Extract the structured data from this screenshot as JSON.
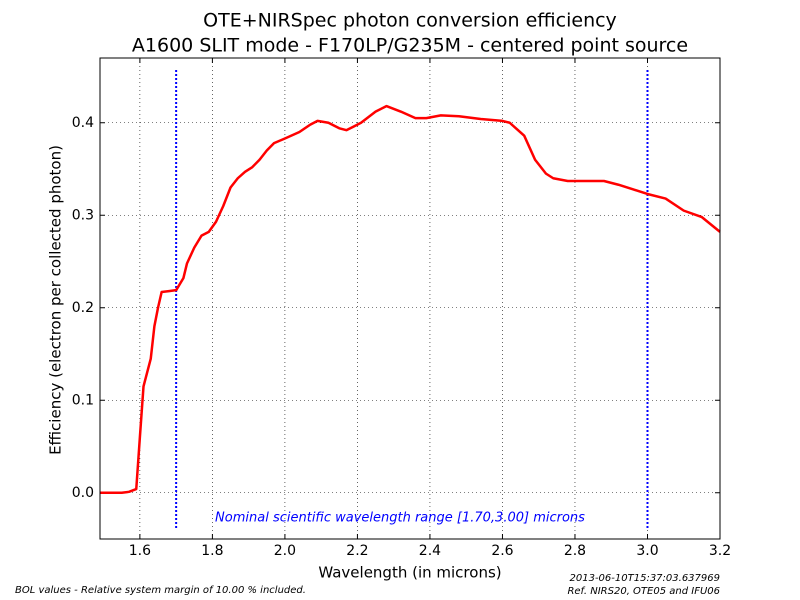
{
  "chart_data": {
    "type": "line",
    "title": "OTE+NIRSpec photon conversion efficiency",
    "subtitle": "A1600 SLIT mode - F170LP/G235M - centered point source",
    "x_label": "Wavelength (in microns)",
    "y_label": "Efficiency (electron per collected photon)",
    "x": [
      1.49,
      1.55,
      1.57,
      1.59,
      1.6,
      1.61,
      1.63,
      1.64,
      1.65,
      1.66,
      1.68,
      1.7,
      1.72,
      1.73,
      1.75,
      1.77,
      1.79,
      1.81,
      1.83,
      1.85,
      1.87,
      1.89,
      1.91,
      1.93,
      1.95,
      1.97,
      2.0,
      2.04,
      2.07,
      2.09,
      2.12,
      2.15,
      2.17,
      2.19,
      2.21,
      2.25,
      2.28,
      2.32,
      2.36,
      2.39,
      2.43,
      2.48,
      2.54,
      2.6,
      2.62,
      2.66,
      2.69,
      2.72,
      2.74,
      2.78,
      2.84,
      2.88,
      2.92,
      2.96,
      3.0,
      3.05,
      3.1,
      3.15,
      3.2
    ],
    "series": [
      {
        "color": "#ff0000",
        "values": [
          0.0,
          0.0,
          0.001,
          0.004,
          0.06,
          0.115,
          0.145,
          0.18,
          0.2,
          0.217,
          0.218,
          0.219,
          0.232,
          0.248,
          0.265,
          0.278,
          0.282,
          0.293,
          0.31,
          0.33,
          0.34,
          0.347,
          0.352,
          0.36,
          0.37,
          0.378,
          0.383,
          0.39,
          0.398,
          0.402,
          0.4,
          0.394,
          0.392,
          0.396,
          0.4,
          0.412,
          0.418,
          0.412,
          0.405,
          0.405,
          0.408,
          0.407,
          0.404,
          0.402,
          0.4,
          0.386,
          0.36,
          0.345,
          0.34,
          0.337,
          0.337,
          0.337,
          0.333,
          0.328,
          0.323,
          0.318,
          0.305,
          0.298,
          0.282
        ]
      }
    ],
    "xlim": [
      1.49,
      3.2
    ],
    "ylim": [
      -0.05,
      0.47
    ],
    "xticks": [
      1.6,
      1.8,
      {
        "value": 2,
        "label": "2.0"
      },
      2.2,
      2.4,
      2.6,
      2.8,
      {
        "value": 3,
        "label": "3.0"
      },
      3.2
    ],
    "yticks": [
      {
        "value": 0,
        "label": "0.0"
      },
      0.1,
      0.2,
      0.3,
      0.4
    ],
    "grid": true,
    "vlines": [
      1.7,
      3.0
    ],
    "vline_color": "#0000ff",
    "annotation": "Nominal scientific wavelength range [1.70,3.00] microns",
    "footnote_left": "BOL values - Relative system margin of 10.00 % included.",
    "footnote_right": [
      "2013-06-10T15:37:03.637969",
      "Ref. NIRS20, OTE05 and IFU06"
    ]
  }
}
